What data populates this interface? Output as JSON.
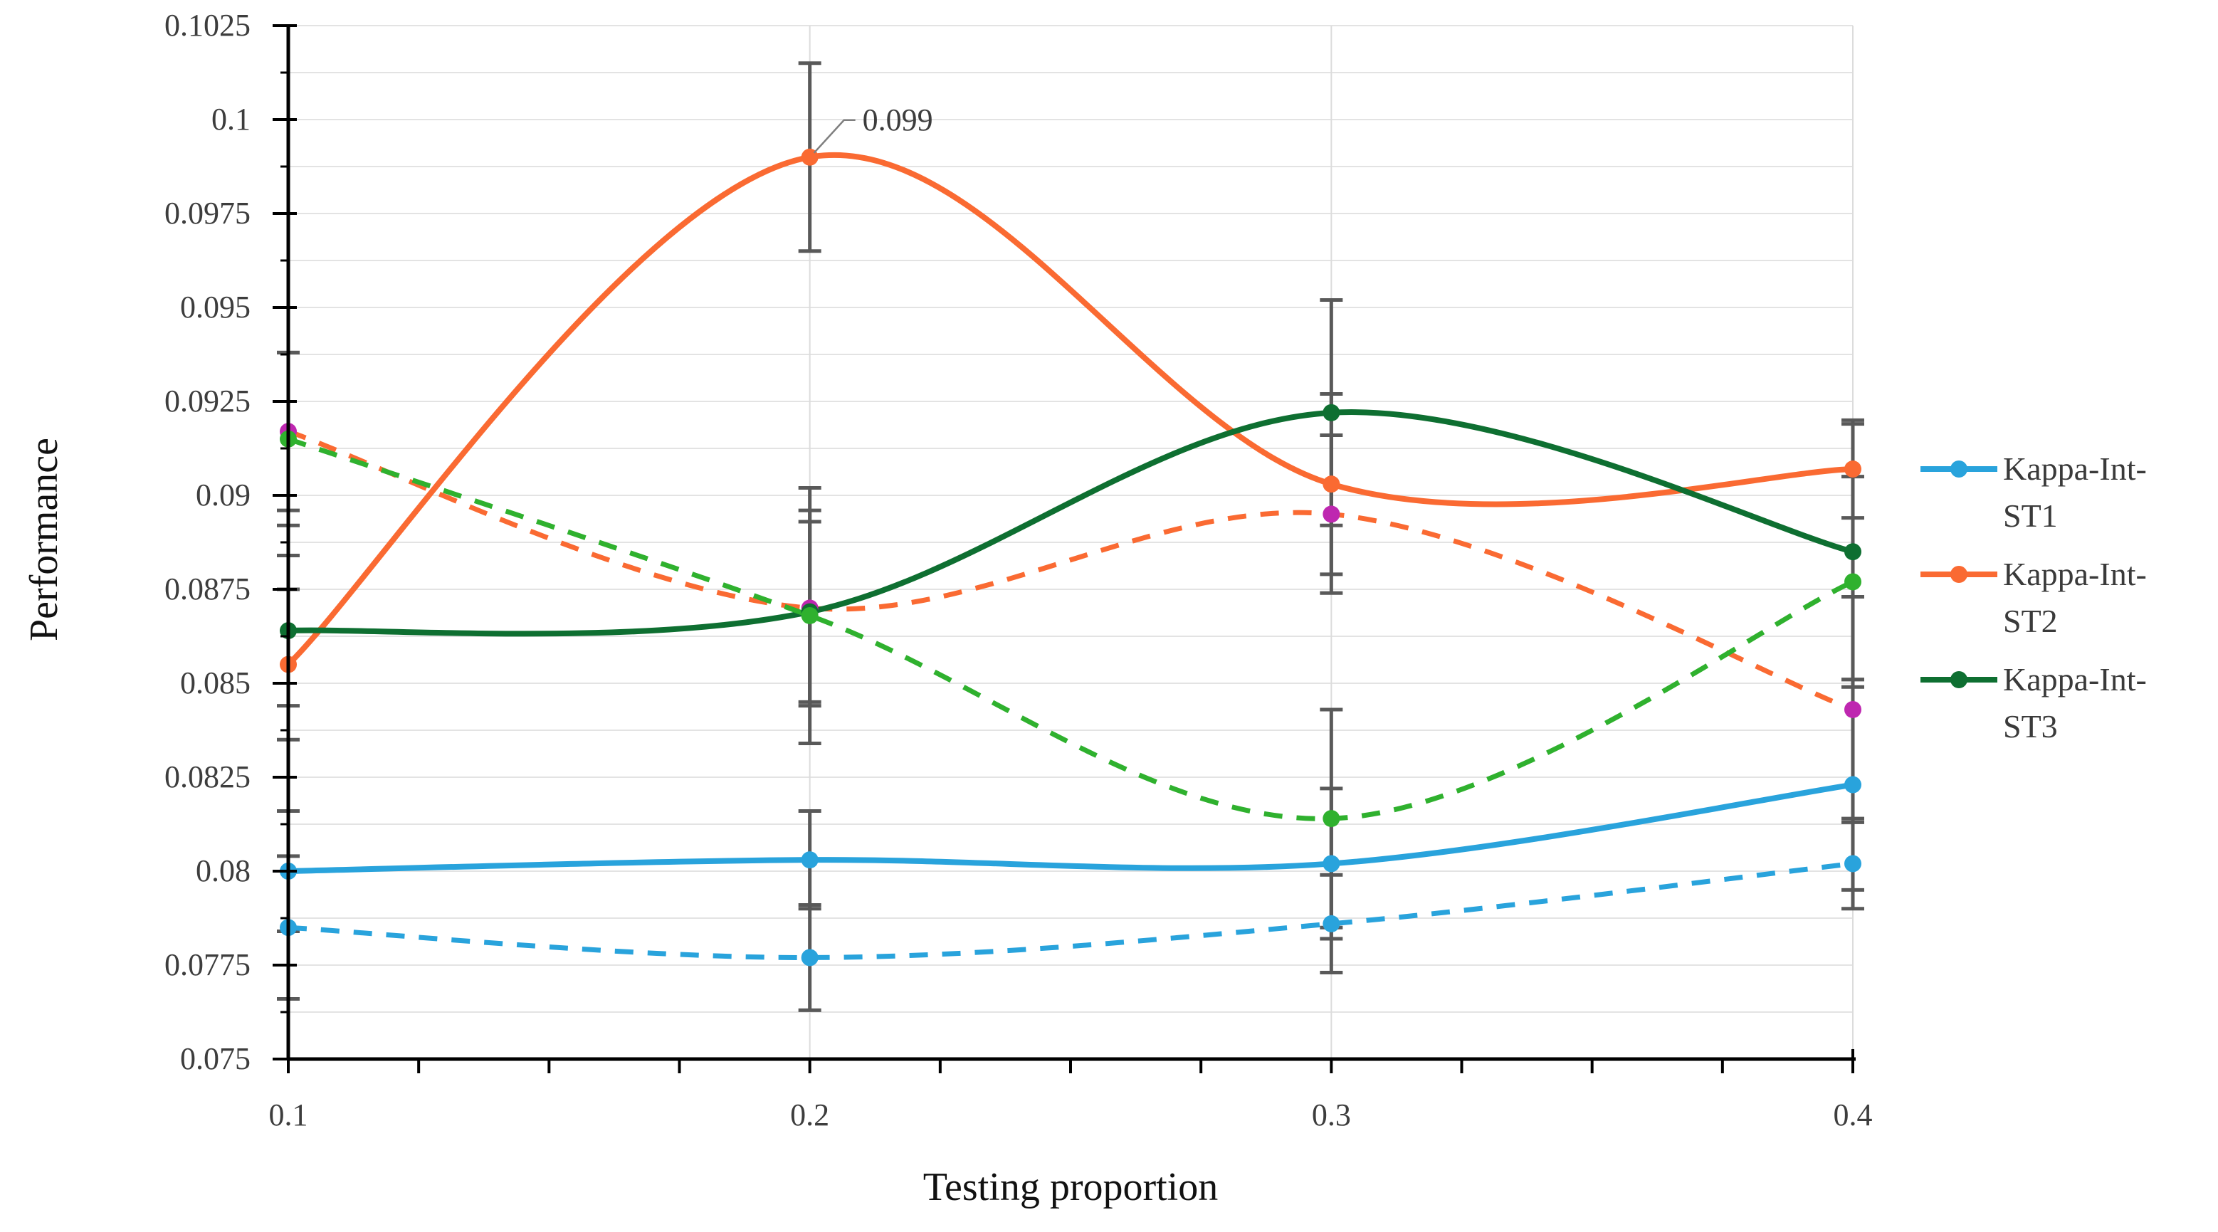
{
  "chart_data": {
    "type": "line",
    "title": "",
    "xlabel": "Testing proportion",
    "ylabel": "Performance",
    "x": [
      0.1,
      0.2,
      0.3,
      0.4
    ],
    "x_tick_labels": [
      "0.1",
      "0.2",
      "0.3",
      "0.4"
    ],
    "ylim": [
      0.075,
      0.1025
    ],
    "y_major_step": 0.0025,
    "y_minor_step": 0.00125,
    "y_tick_labels": [
      "0.075",
      "0.0775",
      "0.08",
      "0.0825",
      "0.085",
      "0.0875",
      "0.09",
      "0.0925",
      "0.095",
      "0.0975",
      "0.1",
      "0.1025"
    ],
    "grid": {
      "horizontal_minor": true,
      "vertical_category": true
    },
    "legend_position": "right",
    "annotation": {
      "text": "0.099",
      "series": "Kappa-Int-ST2",
      "x": 0.2,
      "y": 0.099
    },
    "colors": {
      "blue": "#29A3DC",
      "orange": "#FA6A32",
      "dark_green": "#0E6F31",
      "bright_green": "#2FB12E",
      "magenta": "#BE27B0",
      "error_bar": "#595959",
      "gridline": "#E3E3E3",
      "vertical_gridline": "#DCDCDC",
      "axis": "#000000",
      "leader_line": "#7F7F7F"
    },
    "series": [
      {
        "name": "Kappa-Int-ST1",
        "style": "solid",
        "color": "#29A3DC",
        "marker_color": "#29A3DC",
        "values": [
          0.08,
          0.0803,
          0.0802,
          0.0823
        ],
        "errors": [
          0.0016,
          0.0013,
          0.002,
          0.0028
        ]
      },
      {
        "name": "Kappa-Int-ST1 (dashed)",
        "style": "dashed",
        "color": "#29A3DC",
        "marker_color": "#29A3DC",
        "values": [
          0.0785,
          0.0777,
          0.0786,
          0.0802
        ],
        "errors": [
          0.0019,
          0.0014,
          0.0013,
          0.0012
        ]
      },
      {
        "name": "Kappa-Int-ST2",
        "style": "solid",
        "color": "#FA6A32",
        "marker_color": "#FA6A32",
        "values": [
          0.0855,
          0.099,
          0.0903,
          0.0907
        ],
        "errors": [
          0.002,
          0.0025,
          0.0024,
          0.0013
        ]
      },
      {
        "name": "Kappa-Int-ST2 (dashed)",
        "style": "dashed",
        "color": "#FA6A32",
        "marker_color": "#BE27B0",
        "values": [
          0.0917,
          0.087,
          0.0895,
          0.0843
        ],
        "errors": [
          0.0021,
          0.0026,
          0.0021,
          0.003
        ]
      },
      {
        "name": "Kappa-Int-ST3",
        "style": "solid",
        "color": "#0E6F31",
        "marker_color": "#0E6F31",
        "values": [
          0.0864,
          0.0869,
          0.0922,
          0.0885
        ],
        "errors": [
          0.002,
          0.0024,
          0.003,
          0.0034
        ]
      },
      {
        "name": "Kappa-Int-ST3 (dashed)",
        "style": "dashed",
        "color": "#2FB12E",
        "marker_color": "#2FB12E",
        "values": [
          0.0915,
          0.0868,
          0.0814,
          0.0877
        ],
        "errors": [
          0.0023,
          0.0034,
          0.0029,
          0.0028
        ]
      }
    ],
    "legend": [
      {
        "label": "Kappa-Int-ST1",
        "color": "#29A3DC"
      },
      {
        "label": "Kappa-Int-ST2",
        "color": "#FA6A32"
      },
      {
        "label": "Kappa-Int-ST3",
        "color": "#0E6F31"
      }
    ]
  }
}
